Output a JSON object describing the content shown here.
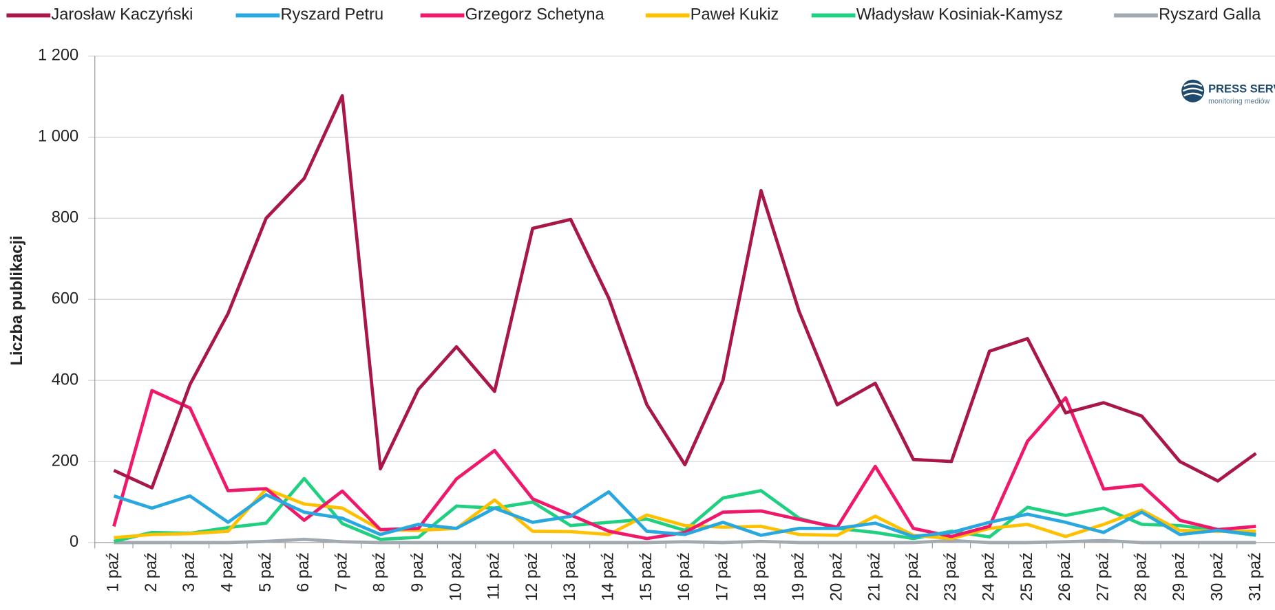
{
  "chart_data": {
    "type": "line",
    "ylabel": "Liczba publikacji",
    "logo": {
      "title": "PRESS SERVICE",
      "subtitle": "monitoring mediów"
    },
    "categories": [
      "1 paź",
      "2 paź",
      "3 paź",
      "4 paź",
      "5 paź",
      "6 paź",
      "7 paź",
      "8 paź",
      "9 paź",
      "10 paź",
      "11 paź",
      "12 paź",
      "13 paź",
      "14 paź",
      "15 paź",
      "16 paź",
      "17 paź",
      "18 paź",
      "19 paź",
      "20 paź",
      "21 paź",
      "22 paź",
      "23 paź",
      "24 paź",
      "25 paź",
      "26 paź",
      "27 paź",
      "28 paź",
      "29 paź",
      "30 paź",
      "31 paź"
    ],
    "series": [
      {
        "name": "Jarosław Kaczyński",
        "color": "#a8164a",
        "values": [
          178,
          135,
          390,
          565,
          800,
          898,
          1102,
          182,
          378,
          483,
          373,
          775,
          797,
          603,
          340,
          192,
          400,
          868,
          570,
          340,
          393,
          205,
          200,
          472,
          503,
          320,
          345,
          312,
          200,
          152,
          220
        ]
      },
      {
        "name": "Ryszard Petru",
        "color": "#29a8e0",
        "values": [
          115,
          85,
          115,
          50,
          118,
          75,
          60,
          20,
          45,
          35,
          85,
          50,
          65,
          125,
          28,
          20,
          50,
          18,
          35,
          35,
          48,
          15,
          25,
          50,
          70,
          50,
          25,
          75,
          20,
          30,
          20
        ]
      },
      {
        "name": "Grzegorz Schetyna",
        "color": "#f0186a",
        "values": [
          40,
          375,
          332,
          128,
          133,
          55,
          127,
          32,
          35,
          157,
          227,
          108,
          68,
          28,
          10,
          25,
          75,
          78,
          57,
          38,
          188,
          35,
          15,
          40,
          250,
          357,
          132,
          142,
          55,
          32,
          40
        ]
      },
      {
        "name": "Paweł Kukiz",
        "color": "#ffc000",
        "values": [
          12,
          20,
          22,
          28,
          132,
          95,
          85,
          32,
          30,
          35,
          105,
          28,
          27,
          20,
          68,
          42,
          38,
          40,
          20,
          18,
          65,
          18,
          10,
          35,
          45,
          15,
          45,
          80,
          30,
          28,
          28
        ]
      },
      {
        "name": "Władysław Kosiniak-Kamysz",
        "color": "#1fd080",
        "values": [
          3,
          25,
          23,
          37,
          48,
          158,
          47,
          8,
          13,
          90,
          85,
          100,
          42,
          50,
          58,
          30,
          110,
          128,
          60,
          35,
          25,
          10,
          28,
          14,
          87,
          67,
          85,
          45,
          42,
          30,
          18
        ]
      },
      {
        "name": "Ryszard Galla",
        "color": "#a0aab0",
        "values": [
          0,
          0,
          0,
          0,
          3,
          8,
          2,
          0,
          0,
          0,
          0,
          0,
          0,
          0,
          0,
          2,
          0,
          3,
          0,
          0,
          0,
          0,
          5,
          0,
          0,
          2,
          5,
          0,
          0,
          0,
          0
        ]
      }
    ],
    "ylim": [
      0,
      1200
    ],
    "yticks": [
      0,
      200,
      400,
      600,
      800,
      {
        "value": 1000,
        "label": "1 000"
      },
      {
        "value": 1200,
        "label": "1 200"
      }
    ],
    "grid": true
  }
}
